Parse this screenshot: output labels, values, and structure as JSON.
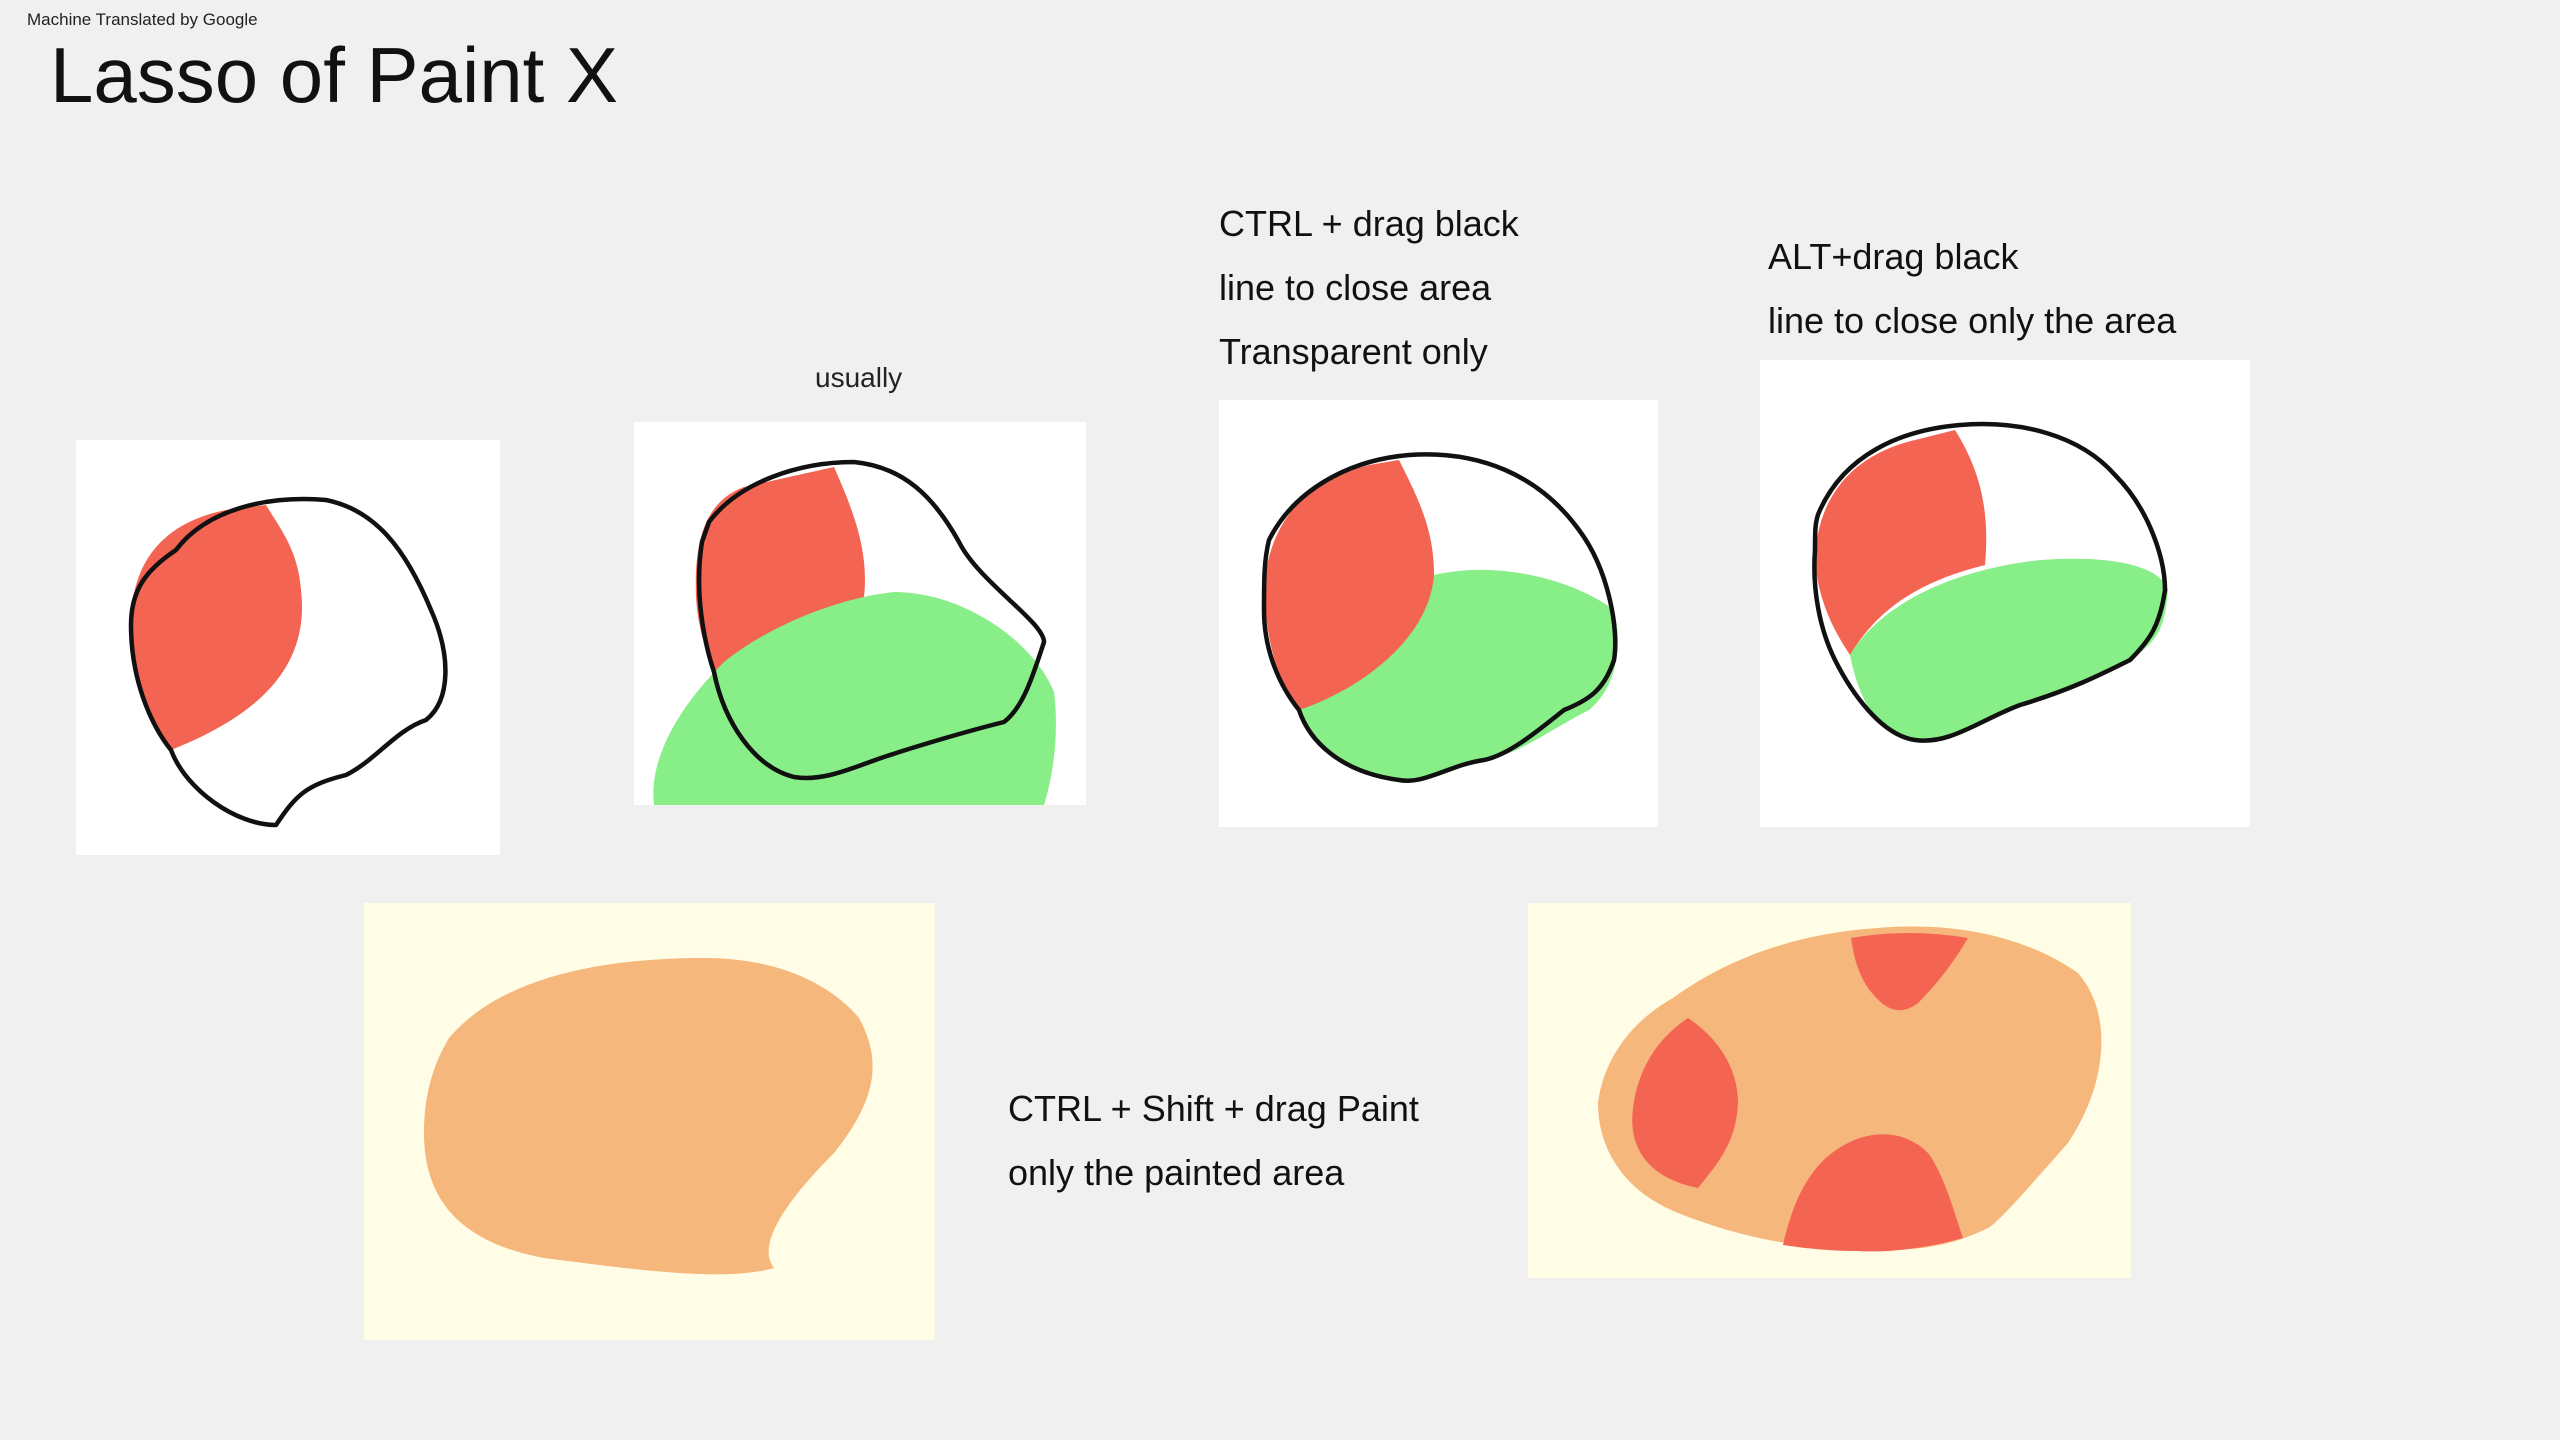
{
  "page": {
    "notice": "Machine Translated by Google",
    "title": "Lasso of Paint X"
  },
  "captions": {
    "usually": "usually",
    "ctrl_drag": [
      "CTRL + drag black",
      "line to close area",
      "Transparent only"
    ],
    "alt_drag": [
      "ALT+drag black",
      "line to close only the area"
    ],
    "ctrl_shift_drag": [
      "CTRL + Shift + drag Paint",
      "only the painted area"
    ]
  },
  "colors": {
    "background": "#f0f0f0",
    "panel": "#ffffff",
    "cream": "#fffde6",
    "red": "#f46452",
    "green": "#88ee88",
    "orange": "#f5b77c",
    "outline": "#111111"
  }
}
